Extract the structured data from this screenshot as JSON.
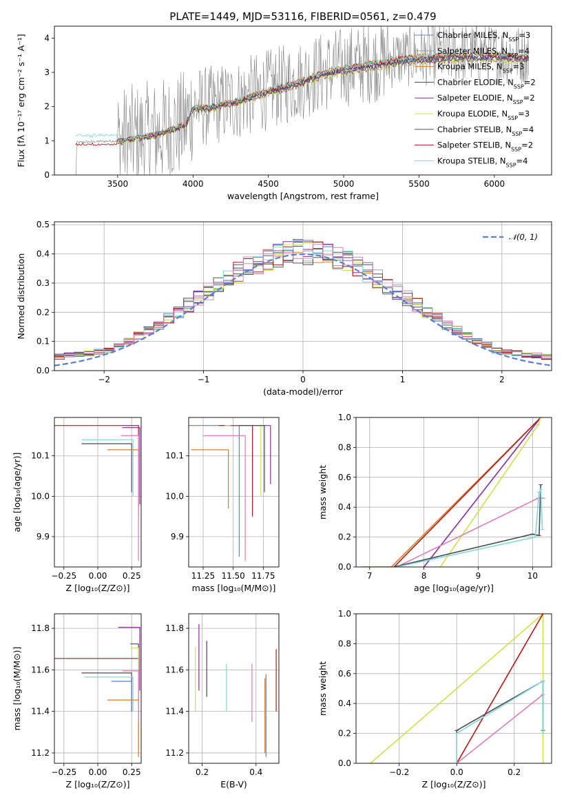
{
  "figure": {
    "title": "PLATE=1449, MJD=53116, FIBERID=0561, z=0.479"
  },
  "colors": [
    "#5b7fd8",
    "#a0a0a0",
    "#e07b20",
    "#4a4a4a",
    "#8a2aa0",
    "#cfe04a",
    "#555555",
    "#b01818",
    "#7fd8dc",
    "#e07ab8"
  ],
  "chart_data": [
    {
      "id": "spectrum",
      "type": "line",
      "title": "PLATE=1449, MJD=53116, FIBERID=0561, z=0.479",
      "xlabel": "wavelength [Angstrom, rest frame]",
      "ylabel": "Flux [fλ 10⁻¹⁷ erg cm⁻² s⁻¹ A⁻¹]",
      "xlim": [
        3080,
        6380
      ],
      "ylim": [
        0,
        4.35
      ],
      "xticks": [
        3500,
        4000,
        4500,
        5000,
        5500,
        6000
      ],
      "yticks": [
        0,
        1,
        2,
        3,
        4
      ],
      "grid": false,
      "legend_position": "top-right",
      "data_series": {
        "name": "data",
        "color": "#808080"
      },
      "model_anchors_x": [
        3220,
        3500,
        3750,
        3950,
        4000,
        4100,
        4300,
        4500,
        4700,
        4850,
        5000,
        5200,
        5400,
        5600,
        5800,
        6000,
        6200
      ],
      "model_anchors_y": [
        0.95,
        1.0,
        1.2,
        1.5,
        2.0,
        2.0,
        2.2,
        2.5,
        2.75,
        3.0,
        3.15,
        3.3,
        3.45,
        3.5,
        3.55,
        3.55,
        3.5
      ],
      "legend": [
        {
          "label": "Chabrier MILES, N",
          "sub": "SSP",
          "suffix": "=3",
          "color": "#5b7fd8"
        },
        {
          "label": "Salpeter MILES, N",
          "sub": "SSP",
          "suffix": "=4",
          "color": "#a0a0a0"
        },
        {
          "label": "Kroupa MILES, N",
          "sub": "SSP",
          "suffix": "=3",
          "color": "#e07b20"
        },
        {
          "label": "Chabrier ELODIE, N",
          "sub": "SSP",
          "suffix": "=2",
          "color": "#4a4a4a"
        },
        {
          "label": "Salpeter ELODIE, N",
          "sub": "SSP",
          "suffix": "=2",
          "color": "#8a2aa0"
        },
        {
          "label": "Kroupa ELODIE, N",
          "sub": "SSP",
          "suffix": "=3",
          "color": "#cfe04a"
        },
        {
          "label": "Chabrier STELIB, N",
          "sub": "SSP",
          "suffix": "=4",
          "color": "#555555"
        },
        {
          "label": "Salpeter STELIB, N",
          "sub": "SSP",
          "suffix": "=2",
          "color": "#b01818"
        },
        {
          "label": "Kroupa STELIB, N",
          "sub": "SSP",
          "suffix": "=4",
          "color": "#7fd8dc"
        }
      ]
    },
    {
      "id": "residuals",
      "type": "line",
      "xlabel": "(data-model)/error",
      "ylabel": "Normed distribution",
      "xlim": [
        -2.5,
        2.5
      ],
      "ylim": [
        0,
        0.51
      ],
      "xticks": [
        -2,
        -1,
        0,
        1,
        2
      ],
      "yticks": [
        0.0,
        0.1,
        0.2,
        0.3,
        0.4,
        0.5
      ],
      "grid": true,
      "legend_position": "top-right",
      "legend": [
        {
          "label": "𝒩(0, 1)",
          "color": "#5b7fd8",
          "style": "dashed"
        }
      ],
      "bin_width": 0.1,
      "histogram_series_colors": [
        "#5b7fd8",
        "#a0a0a0",
        "#e07b20",
        "#4a4a4a",
        "#8a2aa0",
        "#cfe04a",
        "#555555",
        "#b01818",
        "#7fd8dc",
        "#e07ab8"
      ]
    },
    {
      "id": "age_vs_Z",
      "type": "line",
      "xlabel": "Z [log₁₀(Z/Z⊙)]",
      "ylabel": "age  [log₁₀(age/yr)]",
      "xlim": [
        -0.32,
        0.32
      ],
      "ylim": [
        9.825,
        10.195
      ],
      "xticks": [
        -0.25,
        0.0,
        0.25
      ],
      "yticks": [
        9.9,
        10.0,
        10.1
      ],
      "grid": true,
      "segments": [
        {
          "x0": -0.32,
          "x1": 0.3,
          "y": 10.175,
          "ybot": 9.95,
          "color": "#b01818"
        },
        {
          "x0": -0.12,
          "x1": 0.25,
          "y": 10.13,
          "ybot": 10.01,
          "color": "#4a4a4a"
        },
        {
          "x0": -0.12,
          "x1": 0.26,
          "y": 10.14,
          "ybot": 10.0,
          "color": "#7fd8dc"
        },
        {
          "x0": 0.07,
          "x1": 0.3,
          "y": 10.115,
          "ybot": 10.0,
          "color": "#e07b20"
        },
        {
          "x0": 0.17,
          "x1": 0.3,
          "y": 10.15,
          "ybot": 9.84,
          "color": "#e07ab8"
        },
        {
          "x0": 0.18,
          "x1": 0.31,
          "y": 10.17,
          "ybot": 9.98,
          "color": "#8a2aa0"
        }
      ]
    },
    {
      "id": "age_vs_mass",
      "type": "line",
      "xlabel": "mass [log₁₀(M/M⊙)]",
      "ylabel": "",
      "xlim": [
        11.13,
        11.88
      ],
      "ylim": [
        9.825,
        10.195
      ],
      "xticks": [
        11.25,
        11.5,
        11.75
      ],
      "yticks": [
        9.9,
        10.0,
        10.1
      ],
      "grid": true,
      "segments": [
        {
          "x0": 11.13,
          "x1": 11.55,
          "y": 10.175,
          "ybot": 9.85,
          "color": "#5b7fd8"
        },
        {
          "x0": 11.38,
          "x1": 11.66,
          "y": 10.175,
          "ybot": 9.95,
          "color": "#b01818"
        },
        {
          "x0": 11.25,
          "x1": 11.6,
          "y": 10.15,
          "ybot": 9.84,
          "color": "#e07ab8"
        },
        {
          "x0": 11.43,
          "x1": 11.73,
          "y": 10.175,
          "ybot": 10.0,
          "color": "#cfe04a"
        },
        {
          "x0": 11.15,
          "x1": 11.46,
          "y": 10.115,
          "ybot": 9.97,
          "color": "#e07b20"
        },
        {
          "x0": 11.48,
          "x1": 11.81,
          "y": 10.175,
          "ybot": 10.03,
          "color": "#8a2aa0"
        },
        {
          "x0": 11.55,
          "x1": 11.76,
          "y": 10.175,
          "ybot": 10.01,
          "color": "#4a4a4a"
        }
      ]
    },
    {
      "id": "massweight_vs_age",
      "type": "line",
      "xlabel": "age  [log₁₀(age/yr)]",
      "ylabel": "mass weight",
      "xlim": [
        6.75,
        10.35
      ],
      "ylim": [
        0,
        1
      ],
      "xticks": [
        7,
        8,
        9,
        10
      ],
      "yticks": [
        0.0,
        0.2,
        0.4,
        0.6,
        0.8,
        1.0
      ],
      "grid": true,
      "series": [
        {
          "color": "#e07b20",
          "x": [
            6.85,
            7.4,
            10.15,
            10.17
          ],
          "y": [
            0.0,
            0.0,
            1.0,
            1.0
          ]
        },
        {
          "color": "#b01818",
          "x": [
            7.45,
            10.15
          ],
          "y": [
            0.0,
            1.0
          ]
        },
        {
          "color": "#8a2aa0",
          "x": [
            8.0,
            10.15
          ],
          "y": [
            0.0,
            1.0
          ]
        },
        {
          "color": "#cfe04a",
          "x": [
            8.3,
            10.1,
            10.15
          ],
          "y": [
            0.0,
            0.95,
            1.0
          ]
        },
        {
          "color": "#e07ab8",
          "x": [
            7.5,
            10.1,
            10.2
          ],
          "y": [
            0.0,
            0.46,
            0.46
          ]
        },
        {
          "color": "#4a4a4a",
          "x": [
            7.45,
            10.0,
            10.12,
            10.15
          ],
          "y": [
            0.0,
            0.22,
            0.21,
            0.55
          ]
        },
        {
          "color": "#7fd8dc",
          "x": [
            7.5,
            10.05,
            10.12,
            10.15,
            10.18
          ],
          "y": [
            0.0,
            0.2,
            0.5,
            0.52,
            0.25
          ]
        }
      ]
    },
    {
      "id": "mass_vs_Z",
      "type": "line",
      "xlabel": "Z [log₁₀(Z/Z⊙)]",
      "ylabel": "mass [log₁₀(M/M⊙)]",
      "xlim": [
        -0.32,
        0.32
      ],
      "ylim": [
        11.15,
        11.87
      ],
      "xticks": [
        -0.25,
        0.0,
        0.25
      ],
      "yticks": [
        11.2,
        11.4,
        11.6,
        11.8
      ],
      "grid": true,
      "segments": [
        {
          "x0": -0.32,
          "x1": 0.3,
          "y": 11.655,
          "ybot": 11.2,
          "color": "#b01818"
        },
        {
          "x0": -0.12,
          "x1": 0.25,
          "y": 11.585,
          "ybot": 11.4,
          "color": "#4a4a4a"
        },
        {
          "x0": -0.1,
          "x1": 0.26,
          "y": 11.565,
          "ybot": 11.4,
          "color": "#7fd8dc"
        },
        {
          "x0": 0.1,
          "x1": 0.25,
          "y": 11.545,
          "ybot": 11.4,
          "color": "#5b7fd8"
        },
        {
          "x0": 0.15,
          "x1": 0.31,
          "y": 11.805,
          "ybot": 11.5,
          "color": "#8a2aa0"
        },
        {
          "x0": 0.24,
          "x1": 0.3,
          "y": 11.725,
          "ybot": 11.5,
          "color": "#4a4a4a"
        },
        {
          "x0": 0.24,
          "x1": 0.3,
          "y": 11.705,
          "ybot": 11.5,
          "color": "#cfe04a"
        },
        {
          "x0": 0.07,
          "x1": 0.3,
          "y": 11.455,
          "ybot": 11.18,
          "color": "#e07b20"
        },
        {
          "x0": 0.18,
          "x1": 0.3,
          "y": 11.595,
          "ybot": 11.35,
          "color": "#e07ab8"
        }
      ]
    },
    {
      "id": "mass_vs_ebv",
      "type": "line",
      "xlabel": "E(B-V)",
      "ylabel": "",
      "xlim": [
        0.15,
        0.485
      ],
      "ylim": [
        11.15,
        11.87
      ],
      "xticks": [
        0.2,
        0.4
      ],
      "yticks": [
        11.2,
        11.4,
        11.6,
        11.8
      ],
      "grid": true,
      "segments": [
        {
          "x": 0.175,
          "ytop": 11.71,
          "ybot": 11.4,
          "color": "#cfe04a"
        },
        {
          "x": 0.188,
          "ytop": 11.82,
          "ybot": 11.5,
          "color": "#8a2aa0"
        },
        {
          "x": 0.217,
          "ytop": 11.74,
          "ybot": 11.47,
          "color": "#4a4a4a"
        },
        {
          "x": 0.29,
          "ytop": 11.63,
          "ybot": 11.4,
          "color": "#7fd8dc"
        },
        {
          "x": 0.385,
          "ytop": 11.63,
          "ybot": 11.35,
          "color": "#e07ab8"
        },
        {
          "x": 0.437,
          "ytop": 11.58,
          "ybot": 11.18,
          "color": "#5b7fd8"
        },
        {
          "x": 0.433,
          "ytop": 11.56,
          "ybot": 11.2,
          "color": "#e07b20"
        },
        {
          "x": 0.475,
          "ytop": 11.7,
          "ybot": 11.4,
          "color": "#b01818"
        }
      ]
    },
    {
      "id": "massweight_vs_Z",
      "type": "line",
      "xlabel": "Z [log₁₀(Z/Z⊙)]",
      "ylabel": "mass weight",
      "xlim": [
        -0.35,
        0.33
      ],
      "ylim": [
        0,
        1
      ],
      "xticks": [
        -0.2,
        0.0,
        0.2
      ],
      "yticks": [
        0.0,
        0.2,
        0.4,
        0.6,
        0.8,
        1.0
      ],
      "grid": true,
      "series": [
        {
          "color": "#cfe04a",
          "x": [
            -0.3,
            0.3,
            0.3
          ],
          "y": [
            0.0,
            1.0,
            0.0
          ]
        },
        {
          "color": "#b01818",
          "x": [
            0.0,
            0.3
          ],
          "y": [
            0.0,
            1.0
          ]
        },
        {
          "color": "#e07ab8",
          "x": [
            0.0,
            0.3
          ],
          "y": [
            0.0,
            0.46
          ]
        },
        {
          "color": "#4a4a4a",
          "x": [
            0.0,
            0.0,
            0.3,
            0.3
          ],
          "y": [
            0.0,
            0.22,
            0.55,
            0.22
          ]
        },
        {
          "color": "#7fd8dc",
          "x": [
            0.0,
            0.0,
            0.3,
            0.3
          ],
          "y": [
            0.0,
            0.2,
            0.55,
            0.2
          ]
        }
      ]
    }
  ]
}
